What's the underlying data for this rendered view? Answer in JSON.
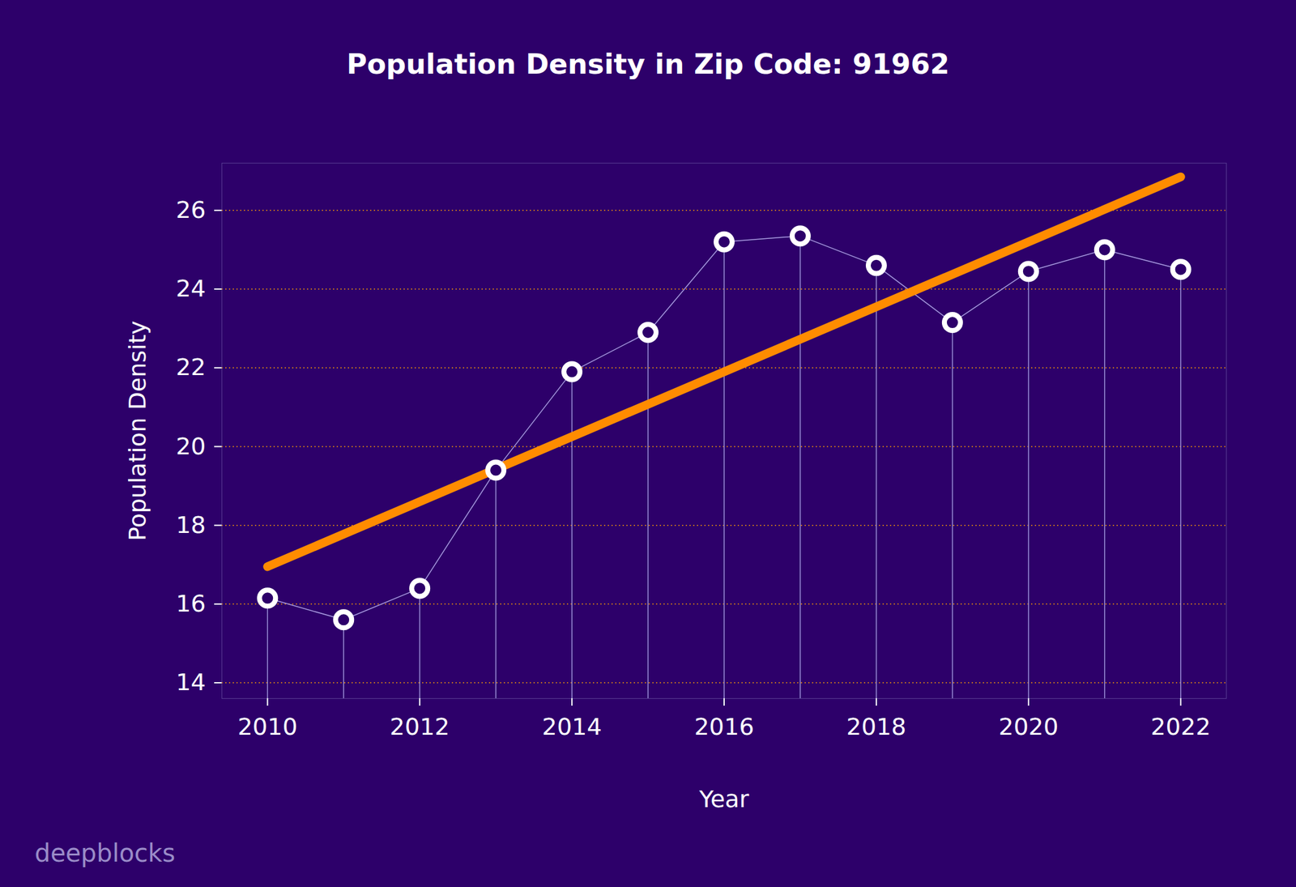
{
  "chart_data": {
    "type": "line",
    "title": "Population Density in Zip Code: 91962",
    "x_label": "Year",
    "y_label": "Population Density",
    "x": [
      2010,
      2011,
      2012,
      2013,
      2014,
      2015,
      2016,
      2017,
      2018,
      2019,
      2020,
      2021,
      2022
    ],
    "series": [
      {
        "values": [
          16.15,
          15.6,
          16.4,
          19.4,
          21.9,
          22.9,
          25.2,
          25.35,
          24.6,
          23.15,
          24.45,
          25.0,
          24.5
        ],
        "color": "#ffffff",
        "marker": "circle",
        "line_style": "solid"
      },
      {
        "type": "line",
        "x": [
          2010,
          2022
        ],
        "values": [
          16.95,
          26.85
        ],
        "color": "#ff8c00",
        "line_style": "solid"
      }
    ],
    "xlim": [
      2009.4,
      2022.6
    ],
    "xticks": [
      2010,
      2012,
      2014,
      2016,
      2018,
      2020,
      2022
    ],
    "ylim": [
      13.6,
      27.2
    ],
    "yticks": [
      14,
      16,
      18,
      20,
      22,
      24,
      26
    ],
    "grid": "y",
    "annotations": [
      {
        "text": "deepblocks"
      }
    ]
  }
}
